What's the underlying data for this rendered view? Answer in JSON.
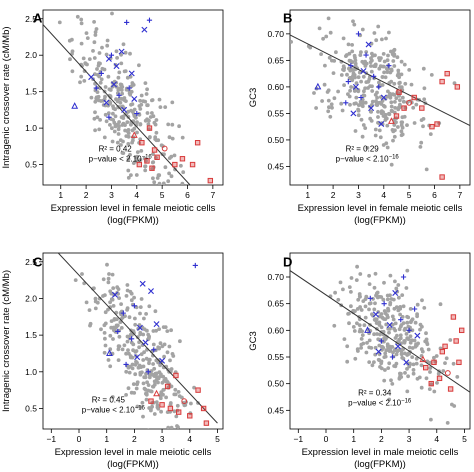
{
  "colors": {
    "gray": "#a3a3a3",
    "blue": "#2f2fd0",
    "red": "#d83a3a",
    "line": "#333333"
  },
  "chart_data": [
    {
      "type": "scatter",
      "panel": "A",
      "xlabel_line1": "Expression level in female meiotic cells",
      "xlabel_line2": "(log(FPKM))",
      "ylabel": "Intragenic crossover rate (cM/Mb)",
      "xlim": [
        0.3,
        7.4
      ],
      "ylim": [
        0.22,
        2.62
      ],
      "xticks": [
        1,
        2,
        3,
        4,
        5,
        6,
        7
      ],
      "yticks": [
        0.5,
        1.0,
        1.5,
        2.0,
        2.5
      ],
      "ytick_labels": [
        "0.5",
        "1.0",
        "1.5",
        "2.0",
        "2.5"
      ],
      "regression": {
        "x": [
          0.3,
          6.1
        ],
        "y": [
          2.42,
          0.22
        ]
      },
      "stats": {
        "r2": "R² = 0.42",
        "pvalue": "p−value < 2.10",
        "exp": "−16"
      },
      "stats_pos": [
        2.1,
        0.68
      ],
      "cloud": {
        "center_x": 3.6,
        "center_y": 1.22,
        "sd_x": 1.05,
        "sd_y": 0.38,
        "slope": -0.38,
        "n": 330
      },
      "blue": [
        {
          "x": 2.9,
          "y": 1.95,
          "m": "x"
        },
        {
          "x": 3.4,
          "y": 2.05,
          "m": "x"
        },
        {
          "x": 3.6,
          "y": 2.45,
          "m": "plus"
        },
        {
          "x": 4.3,
          "y": 2.35,
          "m": "x"
        },
        {
          "x": 4.5,
          "y": 2.48,
          "m": "plus"
        },
        {
          "x": 2.6,
          "y": 1.75,
          "m": "plus"
        },
        {
          "x": 3.1,
          "y": 1.6,
          "m": "x"
        },
        {
          "x": 3.3,
          "y": 1.45,
          "m": "plus"
        },
        {
          "x": 2.8,
          "y": 1.35,
          "m": "x"
        },
        {
          "x": 3.7,
          "y": 1.55,
          "m": "plus"
        },
        {
          "x": 3.9,
          "y": 1.4,
          "m": "x"
        },
        {
          "x": 2.4,
          "y": 1.55,
          "m": "plus"
        },
        {
          "x": 1.55,
          "y": 1.3,
          "m": "tri"
        },
        {
          "x": 3.2,
          "y": 1.85,
          "m": "x"
        },
        {
          "x": 4.0,
          "y": 1.2,
          "m": "plus"
        },
        {
          "x": 2.9,
          "y": 1.15,
          "m": "plus"
        },
        {
          "x": 3.5,
          "y": 1.25,
          "m": "x"
        },
        {
          "x": 2.2,
          "y": 1.7,
          "m": "x"
        },
        {
          "x": 3.0,
          "y": 2.0,
          "m": "plus"
        },
        {
          "x": 3.8,
          "y": 1.75,
          "m": "x"
        }
      ],
      "red": [
        {
          "x": 4.4,
          "y": 0.55,
          "m": "sq"
        },
        {
          "x": 4.6,
          "y": 0.45,
          "m": "sq"
        },
        {
          "x": 4.8,
          "y": 0.6,
          "m": "sq"
        },
        {
          "x": 5.5,
          "y": 0.5,
          "m": "sq"
        },
        {
          "x": 6.2,
          "y": 0.5,
          "m": "sq"
        },
        {
          "x": 6.4,
          "y": 0.8,
          "m": "sq"
        },
        {
          "x": 5.1,
          "y": 0.72,
          "m": "circ"
        },
        {
          "x": 4.2,
          "y": 0.8,
          "m": "sq"
        },
        {
          "x": 3.9,
          "y": 0.9,
          "m": "tri"
        },
        {
          "x": 4.5,
          "y": 1.0,
          "m": "sq"
        },
        {
          "x": 4.7,
          "y": 0.7,
          "m": "sq"
        },
        {
          "x": 5.8,
          "y": 0.58,
          "m": "sq"
        },
        {
          "x": 6.9,
          "y": 0.28,
          "m": "sq"
        },
        {
          "x": 4.1,
          "y": 0.5,
          "m": "sq"
        }
      ]
    },
    {
      "type": "scatter",
      "panel": "B",
      "xlabel_line1": "Expression level in female meiotic cells",
      "xlabel_line2": "(log(FPKM))",
      "ylabel": "GC3",
      "xlim": [
        0.3,
        7.4
      ],
      "ylim": [
        0.415,
        0.745
      ],
      "xticks": [
        1,
        2,
        3,
        4,
        5,
        6,
        7
      ],
      "yticks": [
        0.45,
        0.5,
        0.55,
        0.6,
        0.65,
        0.7
      ],
      "ytick_labels": [
        "0.45",
        "0.50",
        "0.55",
        "0.60",
        "0.65",
        "0.70"
      ],
      "regression": {
        "x": [
          0.3,
          7.4
        ],
        "y": [
          0.698,
          0.527
        ]
      },
      "stats": {
        "r2": "R² = 0.29",
        "pvalue": "p−value < 2.10",
        "exp": "−16"
      },
      "stats_pos": [
        2.1,
        0.478
      ],
      "cloud": {
        "center_x": 3.6,
        "center_y": 0.6,
        "sd_x": 1.05,
        "sd_y": 0.05,
        "slope": -0.024,
        "n": 330
      },
      "blue": [
        {
          "x": 3.0,
          "y": 0.7,
          "m": "plus"
        },
        {
          "x": 3.4,
          "y": 0.68,
          "m": "x"
        },
        {
          "x": 2.7,
          "y": 0.64,
          "m": "plus"
        },
        {
          "x": 3.2,
          "y": 0.63,
          "m": "x"
        },
        {
          "x": 3.6,
          "y": 0.62,
          "m": "plus"
        },
        {
          "x": 2.9,
          "y": 0.6,
          "m": "x"
        },
        {
          "x": 3.8,
          "y": 0.6,
          "m": "plus"
        },
        {
          "x": 1.4,
          "y": 0.6,
          "m": "tri"
        },
        {
          "x": 3.1,
          "y": 0.58,
          "m": "plus"
        },
        {
          "x": 4.0,
          "y": 0.58,
          "m": "x"
        },
        {
          "x": 2.5,
          "y": 0.57,
          "m": "plus"
        },
        {
          "x": 3.5,
          "y": 0.56,
          "m": "x"
        },
        {
          "x": 3.3,
          "y": 0.66,
          "m": "plus"
        },
        {
          "x": 2.8,
          "y": 0.55,
          "m": "x"
        },
        {
          "x": 4.2,
          "y": 0.64,
          "m": "plus"
        },
        {
          "x": 3.9,
          "y": 0.53,
          "m": "x"
        },
        {
          "x": 2.6,
          "y": 0.61,
          "m": "plus"
        }
      ],
      "red": [
        {
          "x": 6.3,
          "y": 0.61,
          "m": "sq"
        },
        {
          "x": 6.5,
          "y": 0.625,
          "m": "sq"
        },
        {
          "x": 6.9,
          "y": 0.6,
          "m": "sq"
        },
        {
          "x": 5.2,
          "y": 0.58,
          "m": "sq"
        },
        {
          "x": 4.8,
          "y": 0.56,
          "m": "sq"
        },
        {
          "x": 4.5,
          "y": 0.545,
          "m": "sq"
        },
        {
          "x": 5.5,
          "y": 0.56,
          "m": "sq"
        },
        {
          "x": 6.1,
          "y": 0.53,
          "m": "sq"
        },
        {
          "x": 5.9,
          "y": 0.525,
          "m": "sq"
        },
        {
          "x": 6.3,
          "y": 0.43,
          "m": "sq"
        },
        {
          "x": 4.3,
          "y": 0.535,
          "m": "tri"
        },
        {
          "x": 5.0,
          "y": 0.57,
          "m": "circ"
        },
        {
          "x": 4.6,
          "y": 0.59,
          "m": "sq"
        }
      ]
    },
    {
      "type": "scatter",
      "panel": "C",
      "xlabel_line1": "Expression level in male meiotic cells",
      "xlabel_line2": "(log(FPKM))",
      "ylabel": "Intragenic crossover rate (cM/Mb)",
      "xlim": [
        -1.3,
        5.2
      ],
      "ylim": [
        0.22,
        2.62
      ],
      "xticks": [
        -1,
        0,
        1,
        2,
        3,
        4,
        5
      ],
      "yticks": [
        0.5,
        1.0,
        1.5,
        2.0,
        2.5
      ],
      "ytick_labels": [
        "0.5",
        "1.0",
        "1.5",
        "2.0",
        "2.5"
      ],
      "regression": {
        "x": [
          -0.75,
          5.0
        ],
        "y": [
          2.62,
          0.3
        ]
      },
      "stats": {
        "r2": "R² = 0.45",
        "pvalue": "p−value < 2.10",
        "exp": "−16"
      },
      "stats_pos": [
        0.1,
        0.58
      ],
      "cloud": {
        "center_x": 2.3,
        "center_y": 1.22,
        "sd_x": 0.9,
        "sd_y": 0.38,
        "slope": -0.42,
        "n": 330
      },
      "blue": [
        {
          "x": 4.2,
          "y": 2.45,
          "m": "plus"
        },
        {
          "x": 2.3,
          "y": 2.2,
          "m": "x"
        },
        {
          "x": 2.6,
          "y": 2.1,
          "m": "x"
        },
        {
          "x": 2.0,
          "y": 1.9,
          "m": "plus"
        },
        {
          "x": 1.6,
          "y": 1.8,
          "m": "plus"
        },
        {
          "x": 2.2,
          "y": 1.6,
          "m": "x"
        },
        {
          "x": 1.9,
          "y": 1.45,
          "m": "plus"
        },
        {
          "x": 2.4,
          "y": 1.4,
          "m": "x"
        },
        {
          "x": 1.4,
          "y": 1.55,
          "m": "plus"
        },
        {
          "x": 2.7,
          "y": 1.3,
          "m": "plus"
        },
        {
          "x": 1.1,
          "y": 1.25,
          "m": "tri"
        },
        {
          "x": 2.1,
          "y": 1.2,
          "m": "x"
        },
        {
          "x": 1.7,
          "y": 1.1,
          "m": "plus"
        },
        {
          "x": 2.8,
          "y": 1.65,
          "m": "x"
        },
        {
          "x": 1.3,
          "y": 2.05,
          "m": "x"
        },
        {
          "x": 2.5,
          "y": 1.0,
          "m": "plus"
        },
        {
          "x": 3.0,
          "y": 1.15,
          "m": "x"
        }
      ],
      "red": [
        {
          "x": 3.0,
          "y": 0.55,
          "m": "sq"
        },
        {
          "x": 3.3,
          "y": 0.5,
          "m": "sq"
        },
        {
          "x": 3.6,
          "y": 0.45,
          "m": "sq"
        },
        {
          "x": 4.0,
          "y": 0.4,
          "m": "sq"
        },
        {
          "x": 4.3,
          "y": 0.75,
          "m": "sq"
        },
        {
          "x": 4.5,
          "y": 0.5,
          "m": "sq"
        },
        {
          "x": 3.8,
          "y": 0.6,
          "m": "circ"
        },
        {
          "x": 2.8,
          "y": 0.7,
          "m": "tri"
        },
        {
          "x": 3.2,
          "y": 0.8,
          "m": "sq"
        },
        {
          "x": 2.6,
          "y": 0.6,
          "m": "sq"
        },
        {
          "x": 4.6,
          "y": 0.3,
          "m": "sq"
        },
        {
          "x": 3.5,
          "y": 0.95,
          "m": "sq"
        }
      ]
    },
    {
      "type": "scatter",
      "panel": "D",
      "xlabel_line1": "Expression level in male meiotic cells",
      "xlabel_line2": "(log(FPKM))",
      "ylabel": "GC3",
      "xlim": [
        -1.3,
        5.2
      ],
      "ylim": [
        0.415,
        0.745
      ],
      "xticks": [
        -1,
        0,
        1,
        2,
        3,
        4,
        5
      ],
      "yticks": [
        0.45,
        0.5,
        0.55,
        0.6,
        0.65,
        0.7
      ],
      "ytick_labels": [
        "0.45",
        "0.50",
        "0.55",
        "0.60",
        "0.65",
        "0.70"
      ],
      "regression": {
        "x": [
          -1.3,
          5.2
        ],
        "y": [
          0.712,
          0.484
        ]
      },
      "stats": {
        "r2": "R² = 0.34",
        "pvalue": "p−value < 2.10",
        "exp": "−16"
      },
      "stats_pos": [
        0.8,
        0.478
      ],
      "cloud": {
        "center_x": 2.4,
        "center_y": 0.595,
        "sd_x": 0.95,
        "sd_y": 0.05,
        "slope": -0.03,
        "n": 330
      },
      "blue": [
        {
          "x": 2.8,
          "y": 0.7,
          "m": "plus"
        },
        {
          "x": 2.5,
          "y": 0.67,
          "m": "x"
        },
        {
          "x": 2.1,
          "y": 0.65,
          "m": "plus"
        },
        {
          "x": 1.8,
          "y": 0.63,
          "m": "x"
        },
        {
          "x": 2.7,
          "y": 0.62,
          "m": "plus"
        },
        {
          "x": 2.3,
          "y": 0.61,
          "m": "x"
        },
        {
          "x": 3.0,
          "y": 0.6,
          "m": "plus"
        },
        {
          "x": 1.5,
          "y": 0.6,
          "m": "tri"
        },
        {
          "x": 2.0,
          "y": 0.58,
          "m": "plus"
        },
        {
          "x": 2.6,
          "y": 0.57,
          "m": "x"
        },
        {
          "x": 3.2,
          "y": 0.64,
          "m": "plus"
        },
        {
          "x": 1.9,
          "y": 0.56,
          "m": "x"
        },
        {
          "x": 2.4,
          "y": 0.55,
          "m": "plus"
        },
        {
          "x": 3.3,
          "y": 0.59,
          "m": "x"
        },
        {
          "x": 1.6,
          "y": 0.66,
          "m": "plus"
        },
        {
          "x": 2.9,
          "y": 0.54,
          "m": "x"
        }
      ],
      "red": [
        {
          "x": 4.6,
          "y": 0.625,
          "m": "sq"
        },
        {
          "x": 4.9,
          "y": 0.6,
          "m": "sq"
        },
        {
          "x": 4.7,
          "y": 0.58,
          "m": "sq"
        },
        {
          "x": 4.2,
          "y": 0.56,
          "m": "sq"
        },
        {
          "x": 3.9,
          "y": 0.54,
          "m": "sq"
        },
        {
          "x": 3.6,
          "y": 0.53,
          "m": "sq"
        },
        {
          "x": 4.4,
          "y": 0.52,
          "m": "circ"
        },
        {
          "x": 4.1,
          "y": 0.51,
          "m": "sq"
        },
        {
          "x": 3.5,
          "y": 0.545,
          "m": "tri"
        },
        {
          "x": 4.8,
          "y": 0.54,
          "m": "sq"
        },
        {
          "x": 3.8,
          "y": 0.5,
          "m": "sq"
        },
        {
          "x": 4.3,
          "y": 0.57,
          "m": "sq"
        },
        {
          "x": 4.5,
          "y": 0.49,
          "m": "sq"
        }
      ]
    }
  ]
}
